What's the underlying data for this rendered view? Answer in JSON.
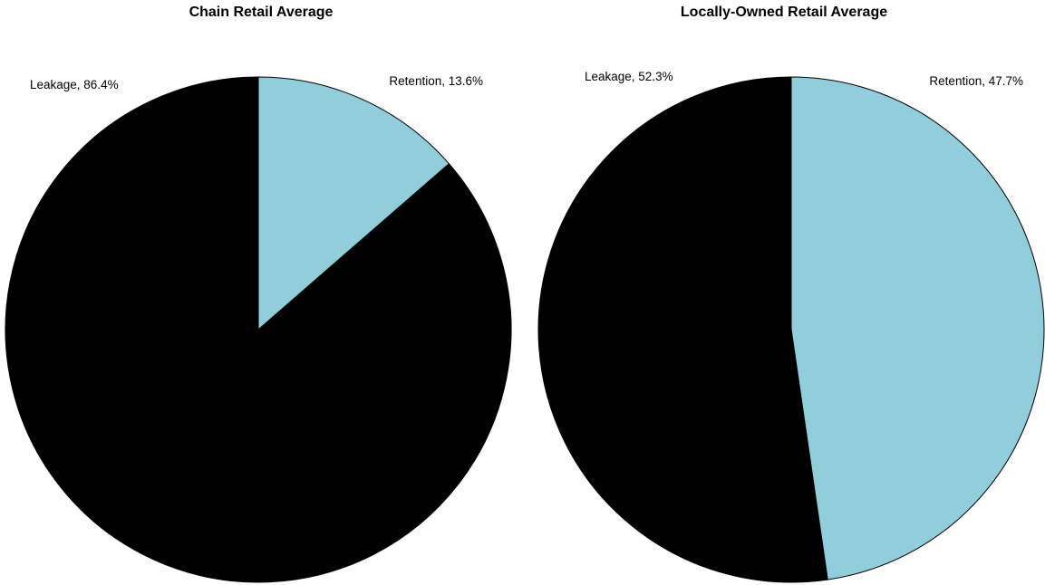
{
  "chart_data": [
    {
      "type": "pie",
      "title": "Chain Retail Average",
      "slices": [
        {
          "label": "Retention",
          "value": 13.6,
          "label_text": "Retention, 13.6%",
          "color": "#92CDDC"
        },
        {
          "label": "Leakage",
          "value": 86.4,
          "label_text": "Leakage, 86.4%",
          "color": "#000000"
        }
      ]
    },
    {
      "type": "pie",
      "title": "Locally-Owned Retail Average",
      "slices": [
        {
          "label": "Retention",
          "value": 47.7,
          "label_text": "Retention, 47.7%",
          "color": "#92CDDC"
        },
        {
          "label": "Leakage",
          "value": 52.3,
          "label_text": "Leakage, 52.3%",
          "color": "#000000"
        }
      ]
    }
  ]
}
